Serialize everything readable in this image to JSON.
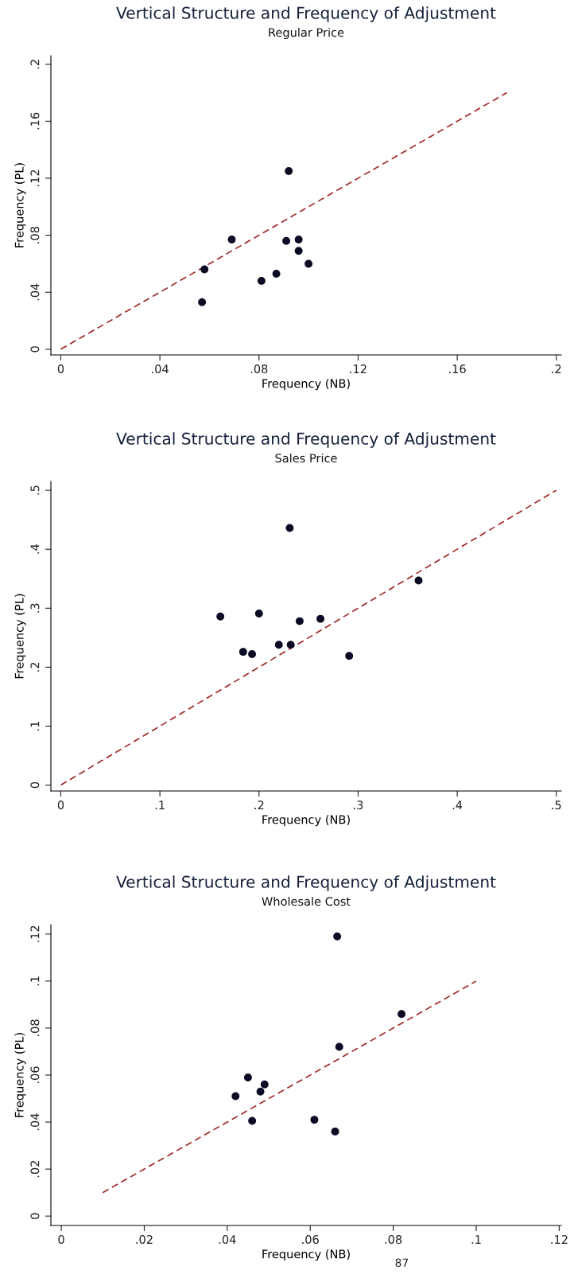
{
  "chart_data": [
    {
      "type": "scatter",
      "title": "Vertical Structure and Frequency of Adjustment",
      "subtitle": "Regular Price",
      "xlabel": "Frequency (NB)",
      "ylabel": "Frequency (PL)",
      "xlim": [
        -0.004,
        0.202
      ],
      "ylim": [
        -0.004,
        0.206
      ],
      "xticks": [
        0,
        {
          "value": 0.04,
          "label": ".04"
        },
        {
          "value": 0.08,
          "label": ".08"
        },
        {
          "value": 0.12,
          "label": ".12"
        },
        {
          "value": 0.16,
          "label": ".16"
        },
        {
          "value": 0.2,
          "label": ".2"
        }
      ],
      "yticks": [
        0,
        {
          "value": 0.04,
          "label": ".04"
        },
        {
          "value": 0.08,
          "label": ".08"
        },
        {
          "value": 0.12,
          "label": ".12"
        },
        {
          "value": 0.16,
          "label": ".16"
        },
        {
          "value": 0.2,
          "label": ".2"
        }
      ],
      "grid": false,
      "series": [
        {
          "type": "scatter",
          "color": "#0a0a23",
          "marker": "circle",
          "x": [
            0.057,
            0.058,
            0.069,
            0.081,
            0.087,
            0.091,
            0.092,
            0.096,
            0.096,
            0.1
          ],
          "values": [
            0.033,
            0.056,
            0.077,
            0.048,
            0.053,
            0.076,
            0.125,
            0.077,
            0.069,
            0.06
          ]
        },
        {
          "type": "line",
          "color": "#a02828",
          "line_style": "dashed",
          "x": [
            0,
            0.18
          ],
          "values": [
            0,
            0.18
          ]
        }
      ]
    },
    {
      "type": "scatter",
      "title": "Vertical Structure and Frequency of Adjustment",
      "subtitle": "Sales Price",
      "xlabel": "Frequency (NB)",
      "ylabel": "Frequency (PL)",
      "xlim": [
        -0.01,
        0.505
      ],
      "ylim": [
        -0.01,
        0.515
      ],
      "xticks": [
        0,
        {
          "value": 0.1,
          "label": ".1"
        },
        {
          "value": 0.2,
          "label": ".2"
        },
        {
          "value": 0.3,
          "label": ".3"
        },
        {
          "value": 0.4,
          "label": ".4"
        },
        {
          "value": 0.5,
          "label": ".5"
        }
      ],
      "yticks": [
        0,
        {
          "value": 0.1,
          "label": ".1"
        },
        {
          "value": 0.2,
          "label": ".2"
        },
        {
          "value": 0.3,
          "label": ".3"
        },
        {
          "value": 0.4,
          "label": ".4"
        },
        {
          "value": 0.5,
          "label": ".5"
        }
      ],
      "grid": false,
      "series": [
        {
          "type": "scatter",
          "color": "#0a0a23",
          "marker": "circle",
          "x": [
            0.161,
            0.184,
            0.193,
            0.2,
            0.22,
            0.231,
            0.232,
            0.241,
            0.262,
            0.291,
            0.361
          ],
          "values": [
            0.286,
            0.226,
            0.222,
            0.291,
            0.238,
            0.436,
            0.238,
            0.278,
            0.282,
            0.219,
            0.347
          ]
        },
        {
          "type": "line",
          "color": "#a02828",
          "line_style": "dashed",
          "x": [
            0,
            0.5
          ],
          "values": [
            0,
            0.5
          ]
        }
      ]
    },
    {
      "type": "scatter",
      "title": "Vertical Structure and Frequency of Adjustment",
      "subtitle": "Wholesale Cost",
      "xlabel": "Frequency (NB)",
      "ylabel": "Frequency (PL)",
      "xlim": [
        -0.0025,
        0.1205
      ],
      "ylim": [
        -0.004,
        0.124
      ],
      "xticks": [
        0,
        {
          "value": 0.02,
          "label": ".02"
        },
        {
          "value": 0.04,
          "label": ".04"
        },
        {
          "value": 0.06,
          "label": ".06"
        },
        {
          "value": 0.08,
          "label": ".08"
        },
        {
          "value": 0.1,
          "label": ".1"
        },
        {
          "value": 0.12,
          "label": ".12"
        }
      ],
      "yticks": [
        0,
        {
          "value": 0.02,
          "label": ".02"
        },
        {
          "value": 0.04,
          "label": ".04"
        },
        {
          "value": 0.06,
          "label": ".06"
        },
        {
          "value": 0.08,
          "label": ".08"
        },
        {
          "value": 0.1,
          "label": ".1"
        },
        {
          "value": 0.12,
          "label": ".12"
        }
      ],
      "grid": false,
      "annotations": [
        "87"
      ],
      "series": [
        {
          "type": "scatter",
          "color": "#0a0a23",
          "marker": "circle",
          "x": [
            0.042,
            0.045,
            0.046,
            0.048,
            0.049,
            0.061,
            0.066,
            0.0665,
            0.067,
            0.082
          ],
          "values": [
            0.051,
            0.059,
            0.0405,
            0.053,
            0.056,
            0.041,
            0.036,
            0.119,
            0.072,
            0.086
          ]
        },
        {
          "type": "line",
          "color": "#a02828",
          "line_style": "dashed",
          "x": [
            0.01,
            0.1
          ],
          "values": [
            0.01,
            0.1
          ]
        }
      ]
    }
  ]
}
